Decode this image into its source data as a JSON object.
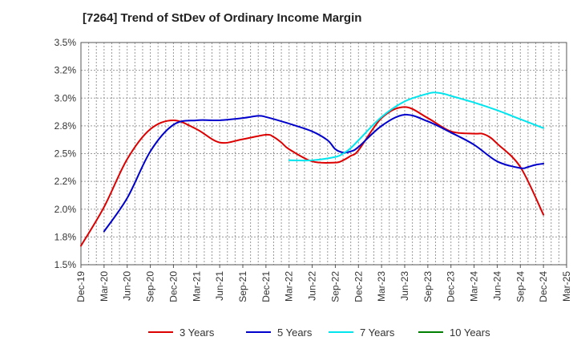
{
  "chart_data": {
    "type": "line",
    "title": "[7264]  Trend of StDev of Ordinary Income Margin",
    "xlabel": "",
    "ylabel": "",
    "x_ticks": [
      "Dec-19",
      "Mar-20",
      "Jun-20",
      "Sep-20",
      "Dec-20",
      "Mar-21",
      "Jun-21",
      "Sep-21",
      "Dec-21",
      "Mar-22",
      "Jun-22",
      "Sep-22",
      "Dec-22",
      "Mar-23",
      "Jun-23",
      "Sep-23",
      "Dec-23",
      "Mar-24",
      "Jun-24",
      "Sep-24",
      "Dec-24",
      "Mar-25"
    ],
    "y_ticks": [
      1.5,
      1.75,
      2.0,
      2.25,
      2.5,
      2.75,
      3.0,
      3.25,
      3.5
    ],
    "y_tick_labels": [
      "1.5%",
      "1.8%",
      "2.0%",
      "2.2%",
      "2.5%",
      "2.8%",
      "3.0%",
      "3.2%",
      "3.5%"
    ],
    "ylim": [
      1.5,
      3.5
    ],
    "grid": true,
    "legend_position": "bottom",
    "series": [
      {
        "name": "3 Years",
        "color": "#dd0000",
        "x": [
          "Dec-19",
          "Mar-20",
          "Jun-20",
          "Sep-20",
          "Dec-20",
          "Mar-21",
          "Jun-21",
          "Sep-21",
          "Dec-21",
          "Jan-22",
          "Feb-22",
          "Mar-22",
          "Jun-22",
          "Sep-22",
          "Oct-22",
          "Nov-22",
          "Dec-22",
          "Mar-23",
          "Jun-23",
          "Sep-23",
          "Dec-23",
          "Mar-24",
          "Apr-24",
          "May-24",
          "Jun-24",
          "Sep-24",
          "Dec-24"
        ],
        "y": [
          1.67,
          2.02,
          2.45,
          2.72,
          2.8,
          2.72,
          2.6,
          2.63,
          2.67,
          2.65,
          2.6,
          2.54,
          2.43,
          2.42,
          2.44,
          2.48,
          2.53,
          2.82,
          2.92,
          2.82,
          2.7,
          2.68,
          2.68,
          2.65,
          2.59,
          2.38,
          1.95
        ]
      },
      {
        "name": "5 Years",
        "color": "#0000cc",
        "x": [
          "Mar-20",
          "Jun-20",
          "Sep-20",
          "Dec-20",
          "Mar-21",
          "Jun-21",
          "Sep-21",
          "Nov-21",
          "Dec-21",
          "Mar-22",
          "Jun-22",
          "Aug-22",
          "Sep-22",
          "Oct-22",
          "Nov-22",
          "Dec-22",
          "Mar-23",
          "Jun-23",
          "Sep-23",
          "Dec-23",
          "Mar-24",
          "Jun-24",
          "Sep-24",
          "Oct-24",
          "Nov-24",
          "Dec-24"
        ],
        "y": [
          1.8,
          2.1,
          2.52,
          2.76,
          2.8,
          2.8,
          2.82,
          2.84,
          2.83,
          2.77,
          2.7,
          2.62,
          2.54,
          2.51,
          2.52,
          2.56,
          2.75,
          2.85,
          2.79,
          2.69,
          2.58,
          2.43,
          2.37,
          2.38,
          2.4,
          2.41
        ]
      },
      {
        "name": "7 Years",
        "color": "#00e5ee",
        "x": [
          "Mar-22",
          "Jun-22",
          "Sep-22",
          "Oct-22",
          "Nov-22",
          "Dec-22",
          "Mar-23",
          "Jun-23",
          "Sep-23",
          "Oct-23",
          "Nov-23",
          "Dec-23",
          "Mar-24",
          "Jun-24",
          "Sep-24",
          "Dec-24"
        ],
        "y": [
          2.44,
          2.44,
          2.47,
          2.5,
          2.55,
          2.62,
          2.83,
          2.97,
          3.04,
          3.05,
          3.04,
          3.02,
          2.96,
          2.89,
          2.81,
          2.73
        ]
      },
      {
        "name": "10 Years",
        "color": "#008000",
        "x": [],
        "y": []
      }
    ]
  }
}
